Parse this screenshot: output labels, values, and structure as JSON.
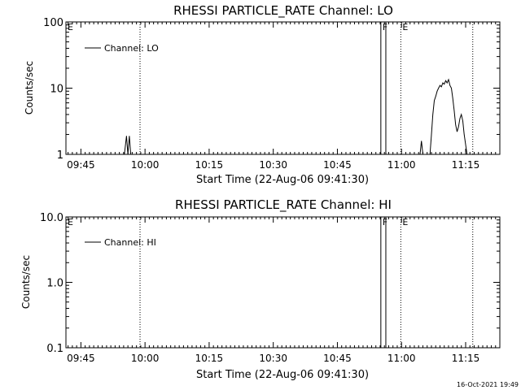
{
  "chart_data": [
    {
      "type": "line",
      "title": "RHESSI PARTICLE_RATE Channel: LO",
      "xlabel": "Start Time (22-Aug-06 09:41:30)",
      "ylabel": "Counts/sec",
      "yscale": "log",
      "ylim": [
        1,
        100
      ],
      "xlim": [
        "09:41:30",
        "11:23:00"
      ],
      "y_tick_labels": [
        "1",
        "10",
        "100"
      ],
      "y_tick_values": [
        1,
        10,
        100
      ],
      "x_tick_labels": [
        "09:45",
        "10:00",
        "10:15",
        "10:30",
        "10:45",
        "11:00",
        "11:15"
      ],
      "legend": {
        "label": "Channel: LO",
        "position": "top-left"
      },
      "flag_markers": [
        {
          "label": "E",
          "time": "09:41:30"
        },
        {
          "label": "F",
          "time": "10:55:10"
        },
        {
          "label": "E",
          "time": "10:59:50"
        }
      ],
      "vertical_dotted_lines": [
        "09:58:50",
        "10:59:50",
        "11:16:40"
      ],
      "vertical_solid_lines": [
        "10:55:10",
        "10:56:20"
      ],
      "series": [
        {
          "segments": [
            [
              [
                "09:55:10",
                1
              ],
              [
                "09:55:40",
                1.9
              ],
              [
                "09:56:00",
                1
              ],
              [
                "09:56:20",
                1.9
              ],
              [
                "09:56:40",
                1
              ]
            ],
            [
              [
                "11:04:20",
                1
              ],
              [
                "11:04:40",
                1.6
              ],
              [
                "11:05:00",
                1
              ]
            ],
            [
              [
                "11:06:40",
                1
              ],
              [
                "11:07:00",
                2.0
              ],
              [
                "11:07:20",
                4.0
              ],
              [
                "11:07:40",
                6.5
              ],
              [
                "11:08:00",
                7.5
              ],
              [
                "11:08:20",
                9.0
              ],
              [
                "11:08:40",
                10.0
              ],
              [
                "11:09:00",
                11.0
              ],
              [
                "11:09:20",
                10.5
              ],
              [
                "11:09:40",
                12.0
              ],
              [
                "11:10:00",
                11.5
              ],
              [
                "11:10:20",
                13.0
              ],
              [
                "11:10:40",
                12.0
              ],
              [
                "11:11:00",
                13.5
              ],
              [
                "11:11:20",
                11.0
              ],
              [
                "11:11:40",
                10.0
              ],
              [
                "11:12:00",
                7.0
              ],
              [
                "11:12:20",
                4.5
              ],
              [
                "11:12:40",
                2.8
              ],
              [
                "11:13:00",
                2.2
              ],
              [
                "11:13:20",
                2.6
              ],
              [
                "11:13:40",
                3.5
              ],
              [
                "11:14:00",
                4.0
              ],
              [
                "11:14:20",
                3.2
              ],
              [
                "11:14:40",
                2.0
              ],
              [
                "11:15:00",
                1.4
              ],
              [
                "11:15:20",
                1
              ]
            ]
          ]
        }
      ]
    },
    {
      "type": "line",
      "title": "RHESSI PARTICLE_RATE Channel: HI",
      "xlabel": "Start Time (22-Aug-06 09:41:30)",
      "ylabel": "Counts/sec",
      "yscale": "log",
      "ylim": [
        0.1,
        10
      ],
      "xlim": [
        "09:41:30",
        "11:23:00"
      ],
      "y_tick_labels": [
        "0.1",
        "1.0",
        "10.0"
      ],
      "y_tick_values": [
        0.1,
        1,
        10
      ],
      "x_tick_labels": [
        "09:45",
        "10:00",
        "10:15",
        "10:30",
        "10:45",
        "11:00",
        "11:15"
      ],
      "legend": {
        "label": "Channel: HI",
        "position": "top-left"
      },
      "flag_markers": [
        {
          "label": "E",
          "time": "09:41:30"
        },
        {
          "label": "F",
          "time": "10:55:10"
        },
        {
          "label": "E",
          "time": "10:59:50"
        }
      ],
      "vertical_dotted_lines": [
        "09:58:50",
        "10:59:50",
        "11:16:40"
      ],
      "vertical_solid_lines": [
        "10:55:10",
        "10:56:20"
      ],
      "series": [
        {
          "segments": []
        }
      ]
    }
  ],
  "footer": {
    "timestamp": "16-Oct-2021 19:49"
  }
}
